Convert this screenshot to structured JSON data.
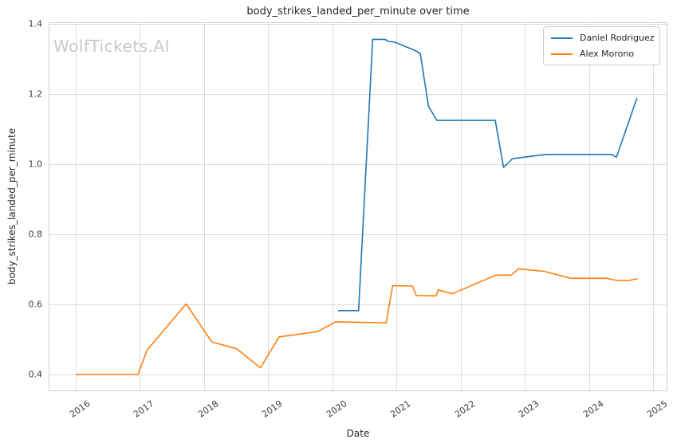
{
  "watermark": "WolfTickets.AI",
  "chart_data": {
    "type": "line",
    "title": "body_strikes_landed_per_minute over time",
    "xlabel": "Date",
    "ylabel": "body_strikes_landed_per_minute",
    "grid": true,
    "legend_position": "upper right",
    "xlim": [
      2015.577,
      2025.212
    ],
    "ylim": [
      0.3555,
      1.4045
    ],
    "xticks": [
      "2016",
      "2017",
      "2018",
      "2019",
      "2020",
      "2021",
      "2022",
      "2023",
      "2024",
      "2025"
    ],
    "yticks": [
      "0.4",
      "0.6",
      "0.8",
      "1.0",
      "1.2",
      "1.4"
    ],
    "colors": {
      "grid": "#dcdcdc",
      "spine": "#cccccc",
      "title_text": "#262626",
      "tick_text": "#3d3d3d",
      "watermark_text": "#c9c9c9",
      "series_blue": "#1f77b4",
      "series_orange": "#ff7f0e"
    },
    "series": [
      {
        "name": "Daniel Rodriguez",
        "color": "#1f77b4",
        "points": [
          [
            2020.09,
            0.583
          ],
          [
            2020.41,
            0.583
          ],
          [
            2020.63,
            1.356
          ],
          [
            2020.82,
            1.356
          ],
          [
            2020.88,
            1.35
          ],
          [
            2020.97,
            1.348
          ],
          [
            2021.28,
            1.325
          ],
          [
            2021.37,
            1.316
          ],
          [
            2021.5,
            1.165
          ],
          [
            2021.63,
            1.125
          ],
          [
            2022.54,
            1.125
          ],
          [
            2022.67,
            0.991
          ],
          [
            2022.81,
            1.016
          ],
          [
            2023.33,
            1.028
          ],
          [
            2024.35,
            1.028
          ],
          [
            2024.43,
            1.02
          ],
          [
            2024.75,
            1.189
          ]
        ]
      },
      {
        "name": "Alex Morono",
        "color": "#ff7f0e",
        "points": [
          [
            2016.0,
            0.401
          ],
          [
            2016.97,
            0.401
          ],
          [
            2017.11,
            0.47
          ],
          [
            2017.72,
            0.602
          ],
          [
            2018.12,
            0.494
          ],
          [
            2018.51,
            0.474
          ],
          [
            2018.88,
            0.42
          ],
          [
            2019.17,
            0.508
          ],
          [
            2019.77,
            0.523
          ],
          [
            2020.05,
            0.551
          ],
          [
            2020.84,
            0.548
          ],
          [
            2020.94,
            0.654
          ],
          [
            2021.25,
            0.653
          ],
          [
            2021.31,
            0.626
          ],
          [
            2021.62,
            0.625
          ],
          [
            2021.65,
            0.642
          ],
          [
            2021.87,
            0.631
          ],
          [
            2022.55,
            0.684
          ],
          [
            2022.79,
            0.684
          ],
          [
            2022.9,
            0.702
          ],
          [
            2023.3,
            0.695
          ],
          [
            2023.72,
            0.675
          ],
          [
            2024.28,
            0.675
          ],
          [
            2024.43,
            0.669
          ],
          [
            2024.63,
            0.669
          ],
          [
            2024.76,
            0.674
          ]
        ]
      }
    ]
  }
}
